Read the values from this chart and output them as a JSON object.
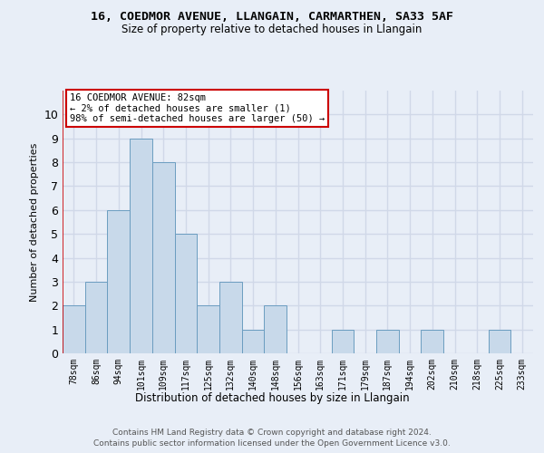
{
  "title1": "16, COEDMOR AVENUE, LLANGAIN, CARMARTHEN, SA33 5AF",
  "title2": "Size of property relative to detached houses in Llangain",
  "xlabel": "Distribution of detached houses by size in Llangain",
  "ylabel": "Number of detached properties",
  "categories": [
    "78sqm",
    "86sqm",
    "94sqm",
    "101sqm",
    "109sqm",
    "117sqm",
    "125sqm",
    "132sqm",
    "140sqm",
    "148sqm",
    "156sqm",
    "163sqm",
    "171sqm",
    "179sqm",
    "187sqm",
    "194sqm",
    "202sqm",
    "210sqm",
    "218sqm",
    "225sqm",
    "233sqm"
  ],
  "values": [
    2,
    3,
    6,
    9,
    8,
    5,
    2,
    3,
    1,
    2,
    0,
    0,
    1,
    0,
    1,
    0,
    1,
    0,
    0,
    1,
    0
  ],
  "bar_color": "#c8d9ea",
  "bar_edgecolor": "#6b9dc0",
  "annotation_text_line1": "16 COEDMOR AVENUE: 82sqm",
  "annotation_text_line2": "← 2% of detached houses are smaller (1)",
  "annotation_text_line3": "98% of semi-detached houses are larger (50) →",
  "annotation_box_edgecolor": "#cc0000",
  "red_vline_color": "#cc0000",
  "ylim_max": 11,
  "footer1": "Contains HM Land Registry data © Crown copyright and database right 2024.",
  "footer2": "Contains public sector information licensed under the Open Government Licence v3.0.",
  "bg_color": "#e8eef7",
  "grid_color": "#d0d8e8",
  "title1_fontsize": 9.5,
  "title2_fontsize": 8.5,
  "ylabel_fontsize": 8,
  "xlabel_fontsize": 8.5,
  "tick_fontsize": 7,
  "ann_fontsize": 7.5,
  "footer_fontsize": 6.5
}
